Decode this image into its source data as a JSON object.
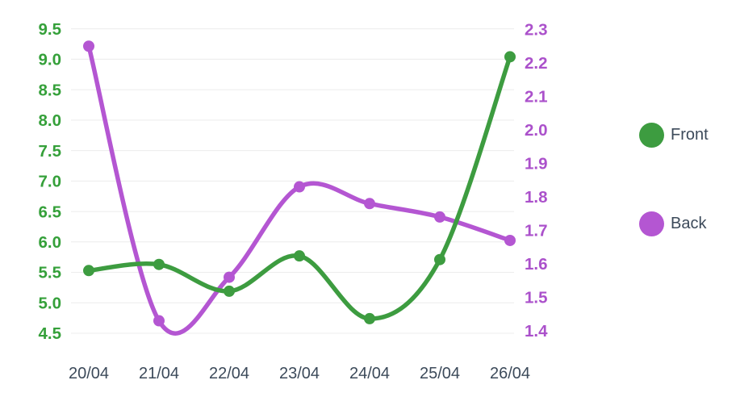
{
  "chart_data": {
    "type": "line",
    "smooth": true,
    "grid": {
      "horizontal": true,
      "vertical": false,
      "color": "#ececec"
    },
    "x_labels": [
      "20/04",
      "21/04",
      "22/04",
      "23/04",
      "24/04",
      "25/04",
      "26/04"
    ],
    "x_label_color": "#3c4a5a",
    "left_axis": {
      "min": 4.5,
      "max": 9.5,
      "step": 0.5,
      "ticks": [
        "9.5",
        "9.0",
        "8.5",
        "8.0",
        "7.5",
        "7.0",
        "6.5",
        "6.0",
        "5.5",
        "5.0",
        "4.5"
      ],
      "color": "#35a03a"
    },
    "right_axis": {
      "min": 1.4,
      "max": 2.3,
      "step": 0.1,
      "ticks": [
        "2.3",
        "2.2",
        "2.1",
        "2.0",
        "1.9",
        "1.8",
        "1.7",
        "1.6",
        "1.5",
        "1.4"
      ],
      "color": "#ab51cb"
    },
    "series": [
      {
        "name": "Back",
        "axis": "right",
        "color": "#b456d2",
        "values": [
          2.25,
          1.43,
          1.56,
          1.83,
          1.78,
          1.74,
          1.67
        ]
      },
      {
        "name": "Front",
        "axis": "left",
        "color": "#3d9c40",
        "values": [
          5.53,
          5.63,
          5.19,
          5.77,
          4.74,
          5.71,
          9.04
        ]
      }
    ],
    "legend": {
      "position": "right",
      "items": [
        {
          "label": "Front",
          "color": "#3d9c40"
        },
        {
          "label": "Back",
          "color": "#b456d2"
        }
      ]
    }
  }
}
